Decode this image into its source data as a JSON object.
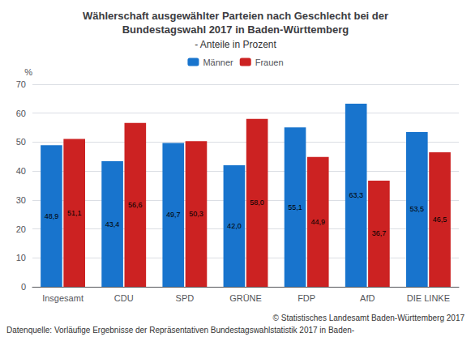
{
  "chart_data": {
    "type": "bar",
    "title": "Wählerschaft ausgewählter Parteien nach Geschlecht bei der\nBundestagswahl 2017 in Baden-Württemberg",
    "subtitle": "- Anteile in Prozent",
    "annotations": [
      "Datenquelle: Vorläufige Ergebnisse der Repräsentativen Bundestagswahlstatistik 2017 in Baden-",
      "© Statistisches Landesamt Baden-Württemberg 2017"
    ],
    "ylabel": "%",
    "categories": [
      "Insgesamt",
      "CDU",
      "SPD",
      "GRÜNE",
      "FDP",
      "AfD",
      "DIE LINKE"
    ],
    "series": [
      {
        "name": "Männer",
        "color": "#1874CD",
        "values": [
          48.9,
          43.4,
          49.7,
          42.0,
          55.1,
          63.3,
          53.5
        ],
        "value_labels": [
          "48,9",
          "43,4",
          "49,7",
          "42,0",
          "55,1",
          "63,3",
          "53,5"
        ]
      },
      {
        "name": "Frauen",
        "color": "#CC2222",
        "values": [
          51.1,
          56.6,
          50.3,
          58.0,
          44.9,
          36.7,
          46.5
        ],
        "value_labels": [
          "51,1",
          "56,6",
          "50,3",
          "58,0",
          "44,9",
          "36,7",
          "46,5"
        ]
      }
    ],
    "ylim": [
      0,
      70
    ],
    "yticks": [
      0,
      10,
      20,
      30,
      40,
      50,
      60,
      70
    ],
    "grid": true,
    "legend": "top",
    "data_labels": true
  }
}
